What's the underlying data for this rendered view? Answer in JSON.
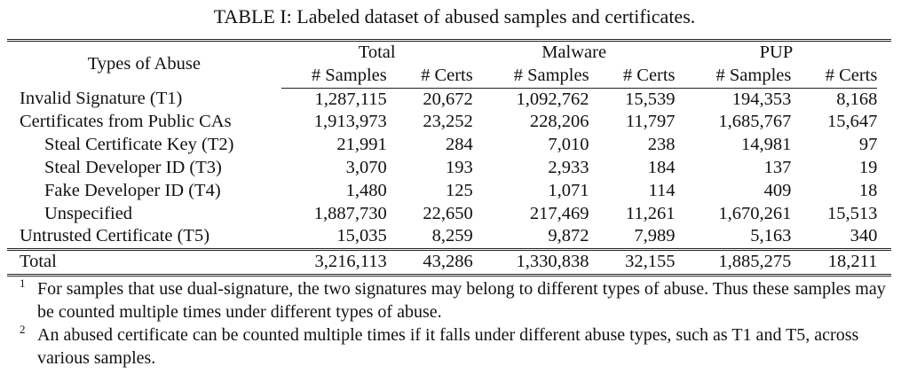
{
  "title": "TABLE I: Labeled dataset of abused samples and certificates.",
  "header": {
    "types": "Types of Abuse",
    "groups": [
      "Total",
      "Malware",
      "PUP"
    ],
    "sub": [
      "# Samples",
      "# Certs",
      "# Samples",
      "# Certs",
      "# Samples",
      "# Certs"
    ]
  },
  "rows": [
    {
      "label": "Invalid Signature (T1)",
      "values": [
        "1,287,115",
        "20,672",
        "1,092,762",
        "15,539",
        "194,353",
        "8,168"
      ]
    },
    {
      "label": "Certificates from Public CAs",
      "values": [
        "1,913,973",
        "23,252",
        "228,206",
        "11,797",
        "1,685,767",
        "15,647"
      ]
    },
    {
      "label": "Steal Certificate Key (T2)",
      "values": [
        "21,991",
        "284",
        "7,010",
        "238",
        "14,981",
        "97"
      ]
    },
    {
      "label": "Steal Developer ID (T3)",
      "values": [
        "3,070",
        "193",
        "2,933",
        "184",
        "137",
        "19"
      ]
    },
    {
      "label": "Fake Developer ID (T4)",
      "values": [
        "1,480",
        "125",
        "1,071",
        "114",
        "409",
        "18"
      ]
    },
    {
      "label": "Unspecified",
      "values": [
        "1,887,730",
        "22,650",
        "217,469",
        "11,261",
        "1,670,261",
        "15,513"
      ]
    },
    {
      "label": "Untrusted Certificate (T5)",
      "values": [
        "15,035",
        "8,259",
        "9,872",
        "7,989",
        "5,163",
        "340"
      ]
    }
  ],
  "total": {
    "label": "Total",
    "values": [
      "3,216,113",
      "43,286",
      "1,330,838",
      "32,155",
      "1,885,275",
      "18,211"
    ]
  },
  "footnotes": [
    {
      "mark": "1",
      "text": "For samples that use dual-signature, the two signatures may belong to different types of abuse. Thus these samples may be counted multiple times under different types of abuse."
    },
    {
      "mark": "2",
      "text": "An abused certificate can be counted multiple times if it falls under different abuse types, such as T1 and T5, across various samples."
    }
  ]
}
